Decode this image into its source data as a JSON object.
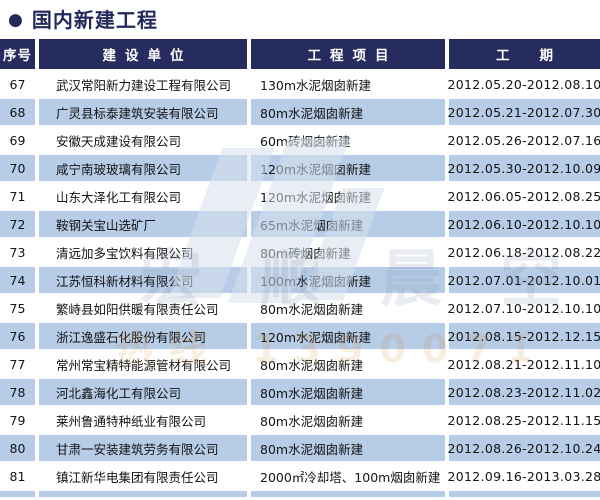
{
  "page": {
    "title": "国内新建工程",
    "bullet_icon": "●"
  },
  "table": {
    "columns": [
      "序号",
      "建设单位",
      "工程项目",
      "工期"
    ],
    "rows": [
      {
        "no": "67",
        "unit": "武汉常阳新力建设工程有限公司",
        "project": "130m水泥烟囱新建",
        "period": "2012.05.20-2012.08.10"
      },
      {
        "no": "68",
        "unit": "广灵县标泰建筑安装有限公司",
        "project": "80m水泥烟囱新建",
        "period": "2012.05.21-2012.07.30"
      },
      {
        "no": "69",
        "unit": "安徽天成建设有限公司",
        "project": "60m砖烟囱新建",
        "period": "2012.05.26-2012.07.16"
      },
      {
        "no": "70",
        "unit": "咸宁南玻玻璃有限公司",
        "project": "120m水泥烟囱新建",
        "period": "2012.05.30-2012.10.09"
      },
      {
        "no": "71",
        "unit": "山东大泽化工有限公司",
        "project": "120m水泥烟囱新建",
        "period": "2012.06.05-2012.08.25"
      },
      {
        "no": "72",
        "unit": "鞍钢关宝山选矿厂",
        "project": "65m水泥烟囱新建",
        "period": "2012.06.10-2012.10.10"
      },
      {
        "no": "73",
        "unit": "清远加多宝饮料有限公司",
        "project": "80m砖烟囱新建",
        "period": "2012.06.18-2012.08.22"
      },
      {
        "no": "74",
        "unit": "江苏恒科新材料有限公司",
        "project": "100m水泥烟囱新建",
        "period": "2012.07.01-2012.10.01"
      },
      {
        "no": "75",
        "unit": "繁峙县如阳供暖有限责任公司",
        "project": "80m水泥烟囱新建",
        "period": "2012.07.10-2012.10.10"
      },
      {
        "no": "76",
        "unit": "浙江逸盛石化股份有限公司",
        "project": "120m水泥烟囱新建",
        "period": "2012.08.15-2012.12.15"
      },
      {
        "no": "77",
        "unit": "常州常宝精特能源管材有限公司",
        "project": "80m水泥烟囱新建",
        "period": "2012.08.21-2012.11.10"
      },
      {
        "no": "78",
        "unit": "河北鑫海化工有限公司",
        "project": "80m水泥烟囱新建",
        "period": "2012.08.23-2012.11.02"
      },
      {
        "no": "79",
        "unit": "莱州鲁通特种纸业有限公司",
        "project": "80m水泥烟囱新建",
        "period": "2012.08.25-2012.11.15"
      },
      {
        "no": "80",
        "unit": "甘肃一安装建筑劳务有限公司",
        "project": "80m水泥烟囱新建",
        "period": "2012.08.26-2012.10.24"
      },
      {
        "no": "81",
        "unit": "镇江新华电集团有限责任公司",
        "project": "2000㎡冷却塔、100m烟囱新建",
        "period": "2012.09.16-2013.03.28"
      }
    ]
  },
  "watermark": {
    "brand_text": "宏顺晨空",
    "hotline_text": "热线 1390071"
  },
  "colors": {
    "header_navy": "#272c5e",
    "row_highlight_blue": "#b6cce7",
    "title_navy": "#232a5a"
  }
}
